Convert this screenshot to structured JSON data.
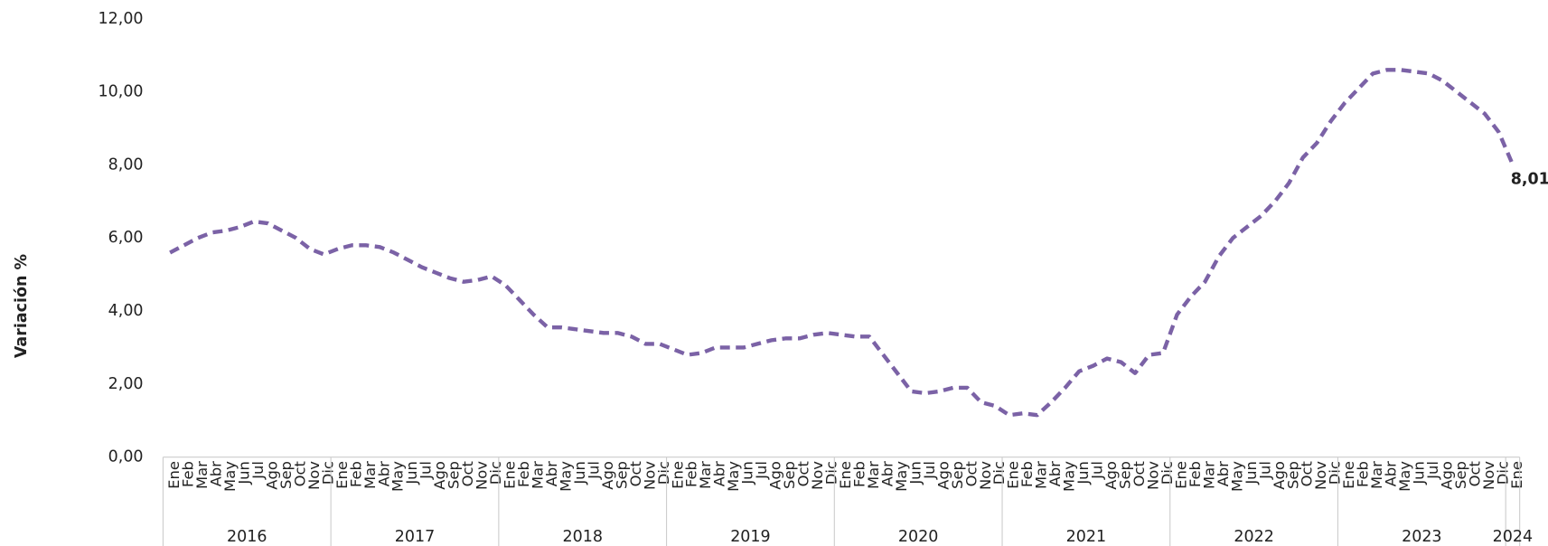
{
  "chart_data": {
    "type": "line",
    "y_label": "Variación %",
    "categories": [
      "Ene",
      "Feb",
      "Mar",
      "Abr",
      "May",
      "Jun",
      "Jul",
      "Ago",
      "Sep",
      "Oct",
      "Nov",
      "Dic",
      "Ene",
      "Feb",
      "Mar",
      "Abr",
      "May",
      "Jun",
      "Jul",
      "Ago",
      "Sep",
      "Oct",
      "Nov",
      "Dic",
      "Ene",
      "Feb",
      "Mar",
      "Abr",
      "May",
      "Jun",
      "Jul",
      "Ago",
      "Sep",
      "Oct",
      "Nov",
      "Dic",
      "Ene",
      "Feb",
      "Mar",
      "Abr",
      "May",
      "Jun",
      "Jul",
      "Ago",
      "Sep",
      "Oct",
      "Nov",
      "Dic",
      "Ene",
      "Feb",
      "Mar",
      "Abr",
      "May",
      "Jun",
      "Jul",
      "Ago",
      "Sep",
      "Oct",
      "Nov",
      "Dic",
      "Ene",
      "Feb",
      "Mar",
      "Abr",
      "May",
      "Jun",
      "Jul",
      "Ago",
      "Sep",
      "Oct",
      "Nov",
      "Dic",
      "Ene",
      "Feb",
      "Mar",
      "Abr",
      "May",
      "Jun",
      "Jul",
      "Ago",
      "Sep",
      "Oct",
      "Nov",
      "Dic",
      "Ene",
      "Feb",
      "Mar",
      "Abr",
      "May",
      "Jun",
      "Jul",
      "Ago",
      "Sep",
      "Oct",
      "Nov",
      "Dic",
      "Ene"
    ],
    "year_labels": [
      "2016",
      null,
      null,
      null,
      null,
      null,
      null,
      null,
      null,
      null,
      null,
      null,
      "2017",
      null,
      null,
      null,
      null,
      null,
      null,
      null,
      null,
      null,
      null,
      null,
      "2018",
      null,
      null,
      null,
      null,
      null,
      null,
      null,
      null,
      null,
      null,
      null,
      "2019",
      null,
      null,
      null,
      null,
      null,
      null,
      null,
      null,
      null,
      null,
      null,
      "2020",
      null,
      null,
      null,
      null,
      null,
      null,
      null,
      null,
      null,
      null,
      null,
      "2021",
      null,
      null,
      null,
      null,
      null,
      null,
      null,
      null,
      null,
      null,
      null,
      "2022",
      null,
      null,
      null,
      null,
      null,
      null,
      null,
      null,
      null,
      null,
      null,
      "2023",
      null,
      null,
      null,
      null,
      null,
      null,
      null,
      null,
      null,
      null,
      null,
      "2024"
    ],
    "series": [
      {
        "color": "#7b62a6",
        "values": [
          5.6,
          5.8,
          6.0,
          6.15,
          6.2,
          6.3,
          6.45,
          6.4,
          6.2,
          6.0,
          5.7,
          5.55,
          5.7,
          5.8,
          5.8,
          5.75,
          5.6,
          5.4,
          5.2,
          5.05,
          4.9,
          4.8,
          4.85,
          4.95,
          4.7,
          4.3,
          3.9,
          3.55,
          3.55,
          3.5,
          3.45,
          3.4,
          3.4,
          3.3,
          3.1,
          3.1,
          2.95,
          2.8,
          2.85,
          3.0,
          3.0,
          3.0,
          3.1,
          3.2,
          3.25,
          3.25,
          3.35,
          3.4,
          3.35,
          3.3,
          3.3,
          2.8,
          2.3,
          1.8,
          1.75,
          1.8,
          1.9,
          1.9,
          1.5,
          1.4,
          1.15,
          1.2,
          1.15,
          1.5,
          1.9,
          2.35,
          2.5,
          2.7,
          2.6,
          2.3,
          2.8,
          2.85,
          3.9,
          4.4,
          4.8,
          5.5,
          6.0,
          6.3,
          6.6,
          7.0,
          7.5,
          8.2,
          8.6,
          9.2,
          9.7,
          10.1,
          10.5,
          10.6,
          10.6,
          10.55,
          10.5,
          10.3,
          10.0,
          9.7,
          9.4,
          8.9,
          8.01
        ],
        "value_labels": [
          null,
          null,
          null,
          null,
          null,
          null,
          null,
          null,
          null,
          null,
          null,
          null,
          null,
          null,
          null,
          null,
          null,
          null,
          null,
          null,
          null,
          null,
          null,
          null,
          null,
          null,
          null,
          null,
          null,
          null,
          null,
          null,
          null,
          null,
          null,
          null,
          null,
          null,
          null,
          null,
          null,
          null,
          null,
          null,
          null,
          null,
          null,
          null,
          null,
          null,
          null,
          null,
          null,
          null,
          null,
          null,
          null,
          null,
          null,
          null,
          null,
          null,
          null,
          null,
          null,
          null,
          null,
          null,
          null,
          null,
          null,
          null,
          null,
          null,
          null,
          null,
          null,
          null,
          null,
          null,
          null,
          null,
          null,
          null,
          null,
          null,
          null,
          null,
          null,
          null,
          null,
          null,
          null,
          null,
          null,
          null,
          "8,01"
        ]
      }
    ],
    "ylim": [
      0,
      12
    ],
    "yticks": [
      {
        "value": 0,
        "label": "0,00"
      },
      {
        "value": 2,
        "label": "2,00"
      },
      {
        "value": 4,
        "label": "4,00"
      },
      {
        "value": 6,
        "label": "6,00"
      },
      {
        "value": 8,
        "label": "8,00"
      },
      {
        "value": 10,
        "label": "10,00"
      },
      {
        "value": 12,
        "label": "12,00"
      }
    ],
    "grid": false
  }
}
